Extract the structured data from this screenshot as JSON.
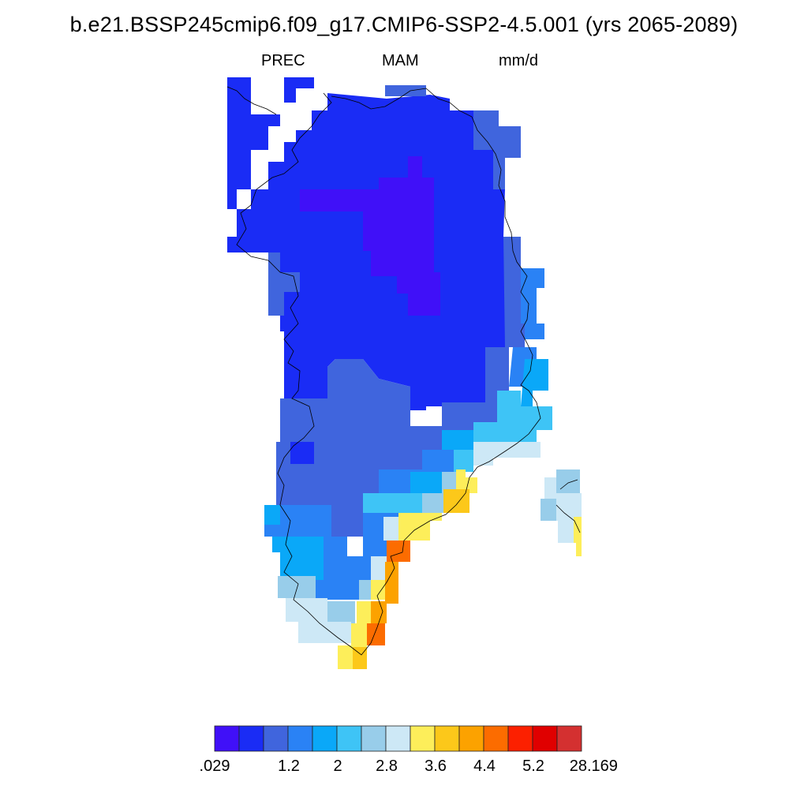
{
  "title": "b.e21.BSSP245cmip6.f09_g17.CMIP6-SSP2-4.5.001 (yrs 2065-2089)",
  "subtitle": {
    "left": "PREC",
    "center": "MAM",
    "right": "mm/d"
  },
  "colorbar": {
    "colors": [
      "#4010f8",
      "#1a2cf5",
      "#4065dd",
      "#2a82f5",
      "#0aa8f8",
      "#3ec4f6",
      "#98cdea",
      "#cde8f6",
      "#fdee5a",
      "#fcc81a",
      "#fca200",
      "#fc6c00",
      "#fc2000",
      "#e00000",
      "#d43030"
    ],
    "labels": [
      ".029",
      "1.2",
      "2",
      "2.8",
      "3.6",
      "4.4",
      "5.2",
      "28.169"
    ]
  },
  "map_colors": {
    "c1": "#4010f8",
    "c2": "#1a2cf5",
    "c3": "#4065dd",
    "c4": "#2a82f5",
    "c5": "#0aa8f8",
    "c6": "#3ec4f6",
    "c7": "#98cdea",
    "c8": "#cde8f6",
    "c9": "#fdee5a",
    "c10": "#fcc81a",
    "c11": "#fca200",
    "c12": "#fc6c00"
  }
}
